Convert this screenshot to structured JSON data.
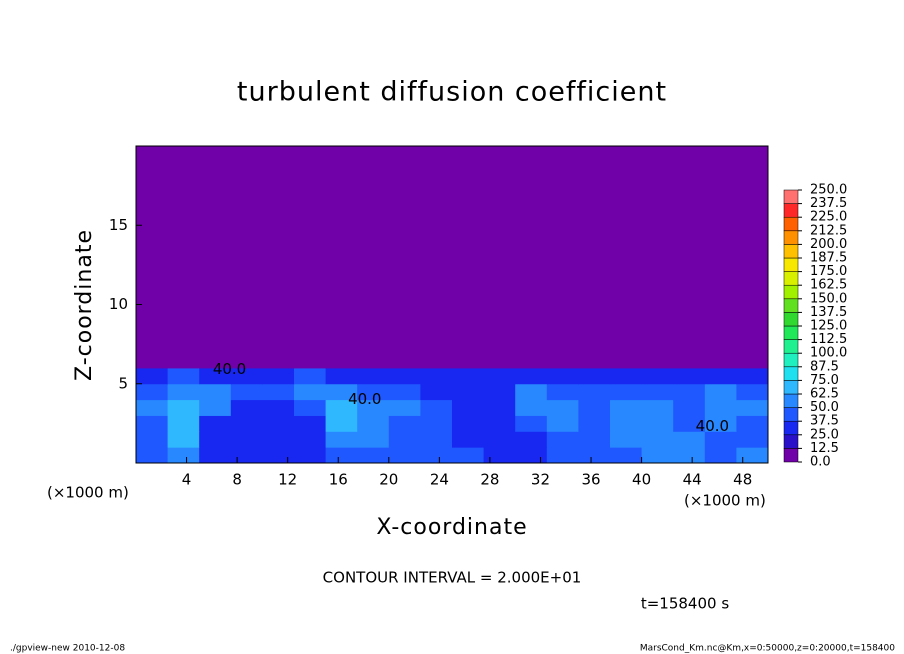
{
  "chart_data": {
    "type": "heatmap",
    "title": "turbulent diffusion coefficient",
    "x_label": "X-coordinate",
    "y_label": "Z-coordinate",
    "unit_labels": [
      "(×1000 m)",
      "(×1000 m)"
    ],
    "contour_interval": "CONTOUR INTERVAL = 2.000E+01",
    "time_label": "t=158400 s",
    "footer_left": "./gpview-new   2010-12-08",
    "footer_right": "MarsCond_Km.nc@Km,x=0:50000,z=0:20000,t=158400",
    "xlim": [
      0,
      50
    ],
    "ylim": [
      0,
      20
    ],
    "xticks": [
      4,
      8,
      12,
      16,
      20,
      24,
      28,
      32,
      36,
      40,
      44,
      48
    ],
    "yticks": [
      5,
      10,
      15
    ],
    "grid": {
      "x_bins": [
        0,
        2.5,
        5,
        7.5,
        10,
        12.5,
        15,
        17.5,
        20,
        22.5,
        25,
        27.5,
        30,
        32.5,
        35,
        37.5,
        40,
        42.5,
        45,
        47.5,
        50
      ],
      "z_bins": [
        0,
        1,
        2,
        3,
        4,
        5,
        6,
        20
      ],
      "values": [
        [
          40,
          55,
          35,
          35,
          35,
          35,
          40,
          45,
          40,
          45,
          40,
          35,
          30,
          45,
          40,
          45,
          50,
          55,
          45,
          50
        ],
        [
          45,
          65,
          30,
          25,
          25,
          25,
          60,
          50,
          45,
          40,
          35,
          30,
          35,
          45,
          40,
          50,
          60,
          50,
          45,
          45
        ],
        [
          40,
          70,
          35,
          25,
          25,
          25,
          65,
          55,
          45,
          40,
          35,
          25,
          40,
          50,
          45,
          50,
          55,
          45,
          50,
          45
        ],
        [
          50,
          65,
          50,
          30,
          30,
          45,
          70,
          60,
          50,
          40,
          30,
          30,
          50,
          55,
          45,
          55,
          50,
          40,
          55,
          50
        ],
        [
          40,
          55,
          60,
          45,
          40,
          50,
          55,
          45,
          40,
          35,
          30,
          30,
          60,
          40,
          40,
          45,
          40,
          40,
          50,
          45
        ],
        [
          35,
          45,
          35,
          30,
          30,
          40,
          35,
          30,
          30,
          30,
          30,
          25,
          35,
          30,
          30,
          35,
          30,
          30,
          35,
          30
        ],
        [
          0,
          0,
          0,
          0,
          0,
          0,
          0,
          0,
          0,
          0,
          0,
          0,
          0,
          0,
          0,
          0,
          0,
          0,
          0,
          0
        ]
      ]
    },
    "contour_labels": [
      {
        "value": 40,
        "label": "40.0",
        "x": 7.4,
        "z": 5.9
      },
      {
        "value": 40,
        "label": "40.0",
        "x": 18.1,
        "z": 4.0
      },
      {
        "value": 40,
        "label": "40.0",
        "x": 45.6,
        "z": 2.3
      }
    ],
    "colorbar": {
      "ticks": [
        {
          "value": 0,
          "label": "0.0"
        },
        {
          "value": 12.5,
          "label": "12.5"
        },
        {
          "value": 25,
          "label": "25.0"
        },
        {
          "value": 37.5,
          "label": "37.5"
        },
        {
          "value": 50,
          "label": "50.0"
        },
        {
          "value": 62.5,
          "label": "62.5"
        },
        {
          "value": 75,
          "label": "75.0"
        },
        {
          "value": 87.5,
          "label": "87.5"
        },
        {
          "value": 100,
          "label": "100.0"
        },
        {
          "value": 112.5,
          "label": "112.5"
        },
        {
          "value": 125,
          "label": "125.0"
        },
        {
          "value": 137.5,
          "label": "137.5"
        },
        {
          "value": 150,
          "label": "150.0"
        },
        {
          "value": 162.5,
          "label": "162.5"
        },
        {
          "value": 175,
          "label": "175.0"
        },
        {
          "value": 187.5,
          "label": "187.5"
        },
        {
          "value": 200,
          "label": "200.0"
        },
        {
          "value": 212.5,
          "label": "212.5"
        },
        {
          "value": 225,
          "label": "225.0"
        },
        {
          "value": 237.5,
          "label": "237.5"
        },
        {
          "value": 250,
          "label": "250.0"
        }
      ],
      "colors": [
        "#7000a8",
        "#2a10c8",
        "#1828f0",
        "#2058ff",
        "#2888ff",
        "#30b8ff",
        "#20e0f0",
        "#20f0c0",
        "#20f090",
        "#20e858",
        "#30d830",
        "#60e020",
        "#a0f000",
        "#d8f000",
        "#f8e800",
        "#ffc000",
        "#ff9000",
        "#ff6000",
        "#ff2828",
        "#ff7070"
      ]
    }
  }
}
